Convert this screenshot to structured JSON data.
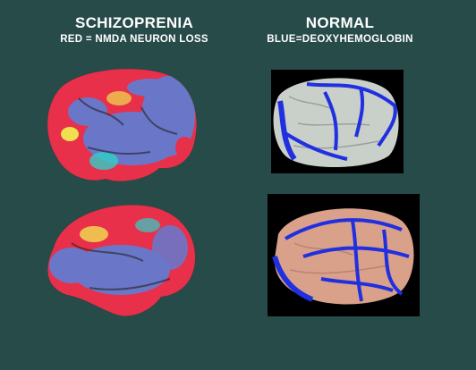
{
  "left": {
    "title": "SCHIZOPRENIA",
    "subtitle": "RED = NMDA NEURON LOSS"
  },
  "right": {
    "title": "NORMAL",
    "subtitle": "BLUE=DEOXYHEMOGLOBIN"
  },
  "colors": {
    "background": "#264b49",
    "loss_red": "#e8304a",
    "cortex_blue": "#6a77c9",
    "vessel_blue": "#2030e0",
    "normal_gray": "#c9cfc9",
    "normal_pink": "#d9a08a"
  }
}
